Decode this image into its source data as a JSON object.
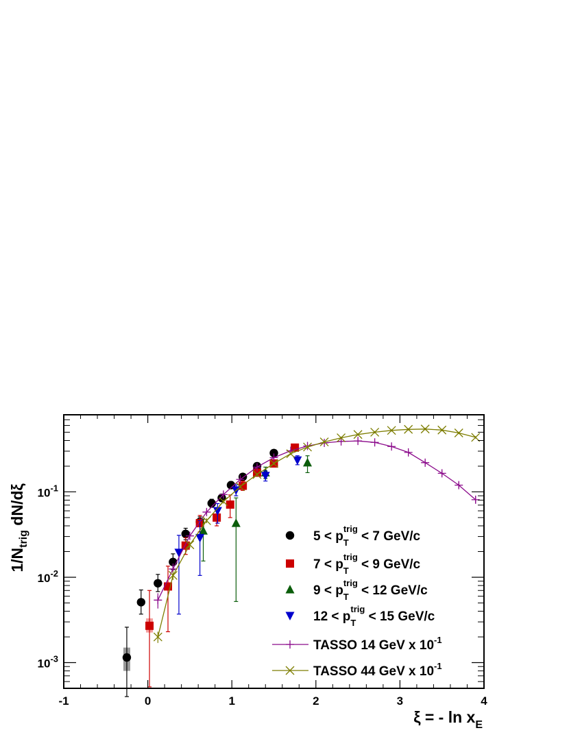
{
  "chart_data": {
    "type": "scatter",
    "title": "",
    "xlabel": {
      "main": "ξ = - ln x",
      "sub": "E"
    },
    "ylabel": {
      "pre": "1/N",
      "sub": "trig",
      "post": " dN/dξ"
    },
    "xlim": [
      -1,
      4
    ],
    "ylim": [
      0.0005,
      0.8
    ],
    "log_y": true,
    "grid": false,
    "legend_position": "bottom-right",
    "x_ticks": [
      {
        "value": -1,
        "label": "-1"
      },
      {
        "value": 0,
        "label": "0"
      },
      {
        "value": 1,
        "label": "1"
      },
      {
        "value": 2,
        "label": "2"
      },
      {
        "value": 3,
        "label": "3"
      },
      {
        "value": 4,
        "label": "4"
      }
    ],
    "y_ticks": [
      {
        "value": 0.001,
        "base": "10",
        "exp": "-3"
      },
      {
        "value": 0.01,
        "base": "10",
        "exp": "-2"
      },
      {
        "value": 0.1,
        "base": "10",
        "exp": "-1"
      }
    ],
    "series": [
      {
        "name": {
          "pre": "5 < p",
          "sup": "trig",
          "sub": "T",
          "post": " < 7 GeV/c"
        },
        "marker": "circle",
        "color": "#000000",
        "sys_color": "#999999",
        "points": [
          {
            "x": -0.25,
            "y": 0.00115,
            "lo": 0.0004,
            "hi": 0.0026,
            "slo": 0.0008,
            "shi": 0.0015
          },
          {
            "x": -0.08,
            "y": 0.0051,
            "lo": 0.0037,
            "hi": 0.0071
          },
          {
            "x": 0.12,
            "y": 0.0085,
            "lo": 0.0068,
            "hi": 0.0108
          },
          {
            "x": 0.3,
            "y": 0.0151,
            "lo": 0.0123,
            "hi": 0.0188
          },
          {
            "x": 0.45,
            "y": 0.0322,
            "lo": 0.0275,
            "hi": 0.0375
          },
          {
            "x": 0.62,
            "y": 0.0445,
            "lo": 0.039,
            "hi": 0.051
          },
          {
            "x": 0.76,
            "y": 0.0735,
            "lo": 0.066,
            "hi": 0.082
          },
          {
            "x": 0.88,
            "y": 0.085,
            "lo": 0.077,
            "hi": 0.094
          },
          {
            "x": 0.99,
            "y": 0.12,
            "lo": 0.109,
            "hi": 0.132
          },
          {
            "x": 1.13,
            "y": 0.15,
            "lo": 0.138,
            "hi": 0.163
          },
          {
            "x": 1.3,
            "y": 0.2,
            "lo": 0.187,
            "hi": 0.214
          },
          {
            "x": 1.5,
            "y": 0.285,
            "lo": 0.268,
            "hi": 0.303
          }
        ]
      },
      {
        "name": {
          "pre": "7 < p",
          "sup": "trig",
          "sub": "T",
          "post": " < 9 GeV/c"
        },
        "marker": "square",
        "color": "#cc0000",
        "sys_color": "#f4a0a0",
        "points": [
          {
            "x": 0.02,
            "y": 0.0027,
            "lo": 0.00052,
            "hi": 0.007,
            "slo": 0.00225,
            "shi": 0.0033
          },
          {
            "x": 0.24,
            "y": 0.0078,
            "lo": 0.0023,
            "hi": 0.0135
          },
          {
            "x": 0.45,
            "y": 0.0235,
            "lo": 0.0185,
            "hi": 0.029
          },
          {
            "x": 0.62,
            "y": 0.043,
            "lo": 0.034,
            "hi": 0.053
          },
          {
            "x": 0.82,
            "y": 0.05,
            "lo": 0.04,
            "hi": 0.061
          },
          {
            "x": 0.98,
            "y": 0.071,
            "lo": 0.05,
            "hi": 0.092
          },
          {
            "x": 1.13,
            "y": 0.118,
            "lo": 0.104,
            "hi": 0.134
          },
          {
            "x": 1.3,
            "y": 0.168,
            "lo": 0.152,
            "hi": 0.186
          },
          {
            "x": 1.5,
            "y": 0.215,
            "lo": 0.196,
            "hi": 0.236
          },
          {
            "x": 1.75,
            "y": 0.33,
            "lo": 0.305,
            "hi": 0.355
          }
        ]
      },
      {
        "name": {
          "pre": "9 < p",
          "sup": "trig",
          "sub": "T",
          "post": " < 12 GeV/c"
        },
        "marker": "triangle-up",
        "color": "#0b5d0b",
        "sys_color": "#9fc79f",
        "points": [
          {
            "x": 0.66,
            "y": 0.035,
            "lo": 0.0155,
            "hi": 0.048
          },
          {
            "x": 1.05,
            "y": 0.043,
            "lo": 0.0052,
            "hi": 0.085
          },
          {
            "x": 1.4,
            "y": 0.168,
            "lo": 0.143,
            "hi": 0.195
          },
          {
            "x": 1.9,
            "y": 0.22,
            "lo": 0.168,
            "hi": 0.265
          }
        ]
      },
      {
        "name": {
          "pre": "12 < p",
          "sup": "trig",
          "sub": "T",
          "post": " < 15 GeV/c"
        },
        "marker": "triangle-down",
        "color": "#0000cc",
        "sys_color": "#a8b4ee",
        "points": [
          {
            "x": 0.37,
            "y": 0.0195,
            "lo": 0.0037,
            "hi": 0.031
          },
          {
            "x": 0.62,
            "y": 0.029,
            "lo": 0.0105,
            "hi": 0.046
          },
          {
            "x": 0.83,
            "y": 0.06,
            "lo": 0.043,
            "hi": 0.073
          },
          {
            "x": 1.05,
            "y": 0.105,
            "lo": 0.09,
            "hi": 0.121
          },
          {
            "x": 1.4,
            "y": 0.155,
            "lo": 0.134,
            "hi": 0.176
          },
          {
            "x": 1.78,
            "y": 0.235,
            "lo": 0.208,
            "hi": 0.265
          }
        ]
      },
      {
        "name": {
          "pre": "TASSO 14 GeV x 10",
          "sup": "-1",
          "sub": "",
          "post": ""
        },
        "marker": "plus-line",
        "color": "#8b0a8b",
        "points": [
          {
            "x": 0.12,
            "y": 0.0054,
            "lo": 0.0043,
            "hi": 0.0065
          },
          {
            "x": 0.3,
            "y": 0.0125,
            "lo": 0.0108,
            "hi": 0.0145
          },
          {
            "x": 0.5,
            "y": 0.0305,
            "lo": 0.0278,
            "hi": 0.0335
          },
          {
            "x": 0.7,
            "y": 0.058,
            "lo": 0.054,
            "hi": 0.062
          },
          {
            "x": 0.9,
            "y": 0.093,
            "lo": 0.088,
            "hi": 0.099
          },
          {
            "x": 1.1,
            "y": 0.14,
            "lo": 0.133,
            "hi": 0.148
          },
          {
            "x": 1.3,
            "y": 0.195,
            "lo": 0.186,
            "hi": 0.205
          },
          {
            "x": 1.5,
            "y": 0.252,
            "lo": 0.241,
            "hi": 0.264
          },
          {
            "x": 1.7,
            "y": 0.303,
            "lo": 0.291,
            "hi": 0.316
          },
          {
            "x": 1.9,
            "y": 0.345,
            "lo": 0.332,
            "hi": 0.359
          },
          {
            "x": 2.1,
            "y": 0.375,
            "lo": 0.361,
            "hi": 0.39
          },
          {
            "x": 2.3,
            "y": 0.39,
            "lo": 0.375,
            "hi": 0.405
          },
          {
            "x": 2.5,
            "y": 0.395,
            "lo": 0.379,
            "hi": 0.412
          },
          {
            "x": 2.7,
            "y": 0.38,
            "lo": 0.364,
            "hi": 0.397
          },
          {
            "x": 2.9,
            "y": 0.34,
            "lo": 0.324,
            "hi": 0.357
          },
          {
            "x": 3.1,
            "y": 0.29,
            "lo": 0.275,
            "hi": 0.306
          },
          {
            "x": 3.3,
            "y": 0.22,
            "lo": 0.207,
            "hi": 0.234
          },
          {
            "x": 3.5,
            "y": 0.165,
            "lo": 0.154,
            "hi": 0.177
          },
          {
            "x": 3.7,
            "y": 0.12,
            "lo": 0.111,
            "hi": 0.13
          },
          {
            "x": 3.9,
            "y": 0.081,
            "lo": 0.074,
            "hi": 0.089
          }
        ]
      },
      {
        "name": {
          "pre": "TASSO 44 GeV x 10",
          "sup": "-1",
          "sub": "",
          "post": ""
        },
        "marker": "x-line",
        "color": "#7d7d00",
        "points": [
          {
            "x": 0.12,
            "y": 0.002,
            "lo": 0.0017,
            "hi": 0.0023
          },
          {
            "x": 0.3,
            "y": 0.0105,
            "lo": 0.0093,
            "hi": 0.0118
          },
          {
            "x": 0.5,
            "y": 0.024,
            "lo": 0.022,
            "hi": 0.026
          },
          {
            "x": 0.7,
            "y": 0.046,
            "lo": 0.043,
            "hi": 0.049
          },
          {
            "x": 0.9,
            "y": 0.077,
            "lo": 0.073,
            "hi": 0.081
          },
          {
            "x": 1.1,
            "y": 0.115,
            "lo": 0.11,
            "hi": 0.121
          },
          {
            "x": 1.3,
            "y": 0.16,
            "lo": 0.153,
            "hi": 0.167
          },
          {
            "x": 1.5,
            "y": 0.215,
            "lo": 0.207,
            "hi": 0.224
          },
          {
            "x": 1.7,
            "y": 0.28,
            "lo": 0.27,
            "hi": 0.29
          },
          {
            "x": 1.9,
            "y": 0.335,
            "lo": 0.324,
            "hi": 0.347
          },
          {
            "x": 2.1,
            "y": 0.385,
            "lo": 0.373,
            "hi": 0.397
          },
          {
            "x": 2.3,
            "y": 0.43,
            "lo": 0.417,
            "hi": 0.443
          },
          {
            "x": 2.5,
            "y": 0.47,
            "lo": 0.456,
            "hi": 0.484
          },
          {
            "x": 2.7,
            "y": 0.5,
            "lo": 0.485,
            "hi": 0.515
          },
          {
            "x": 2.9,
            "y": 0.525,
            "lo": 0.51,
            "hi": 0.54
          },
          {
            "x": 3.1,
            "y": 0.54,
            "lo": 0.524,
            "hi": 0.556
          },
          {
            "x": 3.3,
            "y": 0.545,
            "lo": 0.529,
            "hi": 0.561
          },
          {
            "x": 3.5,
            "y": 0.53,
            "lo": 0.514,
            "hi": 0.546
          },
          {
            "x": 3.7,
            "y": 0.49,
            "lo": 0.475,
            "hi": 0.505
          },
          {
            "x": 3.9,
            "y": 0.435,
            "lo": 0.421,
            "hi": 0.449
          }
        ]
      }
    ]
  }
}
